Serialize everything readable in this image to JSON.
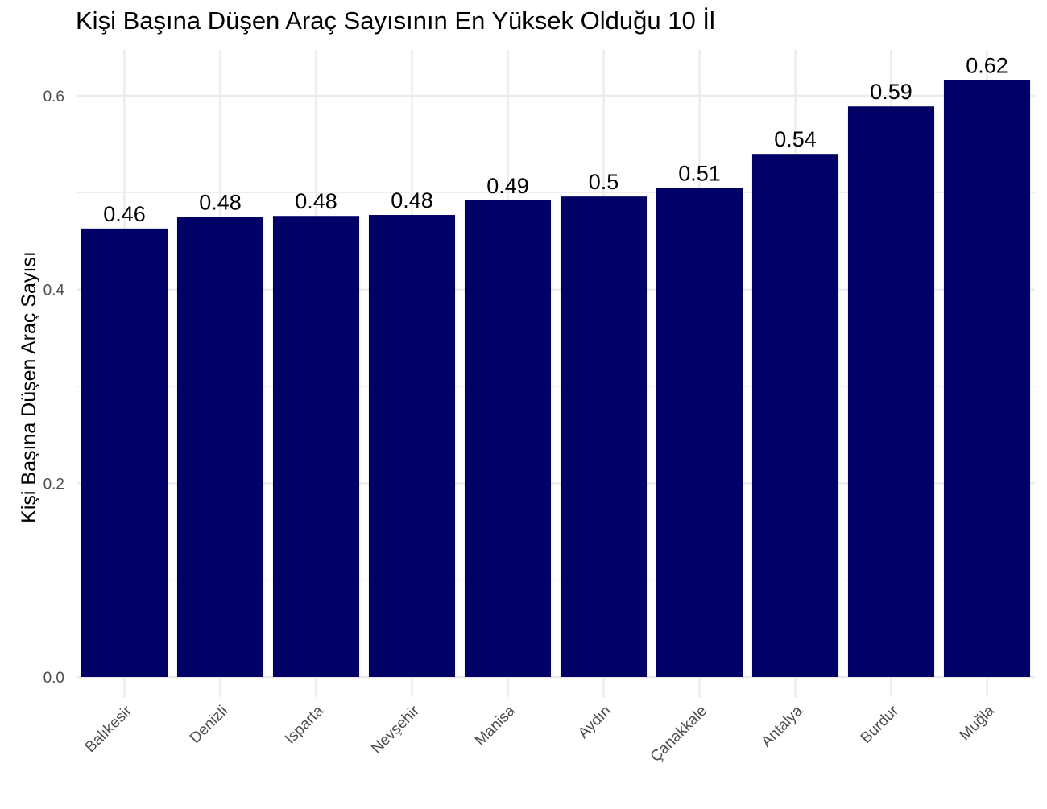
{
  "chart_data": {
    "type": "bar",
    "title": "Kişi Başına Düşen Araç Sayısının En Yüksek Olduğu 10 İl",
    "xlabel": "",
    "ylabel": "Kişi Başına Düşen Araç Sayısı",
    "categories": [
      "Balıkesir",
      "Denizli",
      "Isparta",
      "Nevşehir",
      "Manisa",
      "Aydın",
      "Çanakkale",
      "Antalya",
      "Burdur",
      "Muğla"
    ],
    "values": [
      0.463,
      0.475,
      0.476,
      0.477,
      0.492,
      0.496,
      0.505,
      0.54,
      0.589,
      0.616
    ],
    "data_labels": [
      "0.46",
      "0.48",
      "0.48",
      "0.48",
      "0.49",
      "0.5",
      "0.51",
      "0.54",
      "0.59",
      "0.62"
    ],
    "y_ticks": [
      0.0,
      0.2,
      0.4,
      0.6
    ],
    "y_tick_labels": [
      "0.0",
      "0.2",
      "0.4",
      "0.6"
    ],
    "ylim": [
      0,
      0.6475
    ],
    "grid": true,
    "legend": "none",
    "bar_color": "#000066",
    "grid_color": "#ebebeb"
  }
}
